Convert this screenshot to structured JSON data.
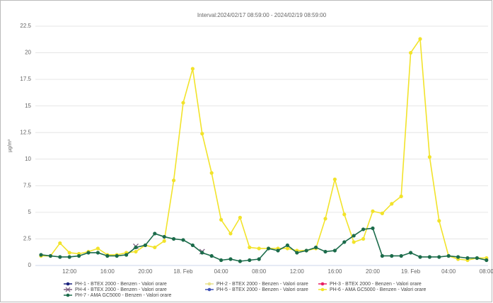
{
  "chart_data": {
    "type": "line",
    "title": "Interval:2024/02/17 08:59:00 - 2024/02/19 08:59:00",
    "y_label": "µg/m³",
    "categories": [
      null,
      null,
      null,
      "12:00",
      null,
      null,
      null,
      "16:00",
      null,
      null,
      null,
      "20:00",
      null,
      null,
      null,
      "18. Feb",
      null,
      null,
      null,
      "04:00",
      null,
      null,
      null,
      "08:00",
      null,
      null,
      null,
      "12:00",
      null,
      null,
      null,
      "16:00",
      null,
      null,
      null,
      "20:00",
      null,
      null,
      null,
      "19. Feb",
      null,
      null,
      null,
      "04:00",
      null,
      null,
      null,
      "08:00"
    ],
    "ylim": [
      0,
      22.5
    ],
    "yticks": [
      0,
      2.5,
      5,
      7.5,
      10,
      12.5,
      15,
      17.5,
      20,
      22.5
    ],
    "grid": true,
    "series": [
      {
        "name": "PH-1 - BTEX 2000 - Benzen - Valori orare",
        "color": "#1a237e",
        "marker": "circle",
        "values": [
          null,
          null,
          null,
          null,
          null,
          null,
          null,
          null,
          null,
          null,
          null,
          null,
          null,
          null,
          null,
          null,
          null,
          null,
          null,
          null,
          null,
          null,
          null,
          null,
          null,
          null,
          null,
          null,
          null,
          null,
          null,
          null,
          null,
          null,
          null,
          null,
          null,
          null,
          null,
          null,
          null,
          null,
          null,
          null,
          null,
          null,
          null,
          null
        ]
      },
      {
        "name": "PH-2 - BTEX 2000 - Benzen - Valori orare",
        "color": "#e8e08a",
        "marker": "circle",
        "values": [
          null,
          null,
          null,
          null,
          null,
          null,
          null,
          null,
          null,
          null,
          null,
          null,
          null,
          null,
          null,
          null,
          null,
          null,
          null,
          null,
          null,
          null,
          null,
          null,
          null,
          null,
          null,
          null,
          null,
          null,
          null,
          null,
          null,
          null,
          null,
          null,
          null,
          null,
          null,
          null,
          null,
          null,
          null,
          null,
          null,
          null,
          null,
          null
        ]
      },
      {
        "name": "PH-3 - BTEX 2000 - Benzen - Valori orare",
        "color": "#e91e63",
        "marker": "circle",
        "values": [
          null,
          null,
          null,
          null,
          null,
          null,
          null,
          null,
          null,
          null,
          null,
          null,
          null,
          null,
          null,
          null,
          null,
          null,
          null,
          null,
          null,
          null,
          null,
          null,
          null,
          null,
          null,
          null,
          null,
          null,
          null,
          null,
          null,
          null,
          null,
          null,
          null,
          null,
          null,
          null,
          null,
          null,
          null,
          null,
          null,
          null,
          null,
          null
        ]
      },
      {
        "name": "PH-4 - BTEX 2000 - Benzen - Valori orare",
        "color": "#7b5a7e",
        "marker": "cross",
        "values": [
          null,
          null,
          null,
          null,
          null,
          null,
          null,
          null,
          null,
          null,
          1.8,
          null,
          null,
          null,
          null,
          null,
          null,
          1.3,
          null,
          null,
          null,
          null,
          null,
          null,
          null,
          null,
          null,
          null,
          null,
          null,
          null,
          null,
          null,
          null,
          null,
          null,
          null,
          null,
          null,
          null,
          null,
          null,
          null,
          null,
          null,
          null,
          null,
          null
        ]
      },
      {
        "name": "PH-5 - BTEX 2000 - Benzen - Valori orare",
        "color": "#3f51b5",
        "marker": "circle",
        "values": [
          null,
          null,
          null,
          null,
          null,
          null,
          null,
          null,
          null,
          null,
          null,
          null,
          null,
          null,
          null,
          null,
          null,
          null,
          null,
          null,
          null,
          null,
          null,
          null,
          null,
          null,
          null,
          null,
          null,
          null,
          null,
          null,
          null,
          null,
          null,
          null,
          null,
          null,
          null,
          null,
          null,
          null,
          null,
          null,
          null,
          null,
          null,
          null
        ]
      },
      {
        "name": "PH-6 - AMA GC5000 - Benzen - Valori orare",
        "color": "#f2e32a",
        "marker": "circle",
        "values": [
          0.9,
          0.9,
          2.1,
          1.2,
          1.1,
          1.3,
          1.6,
          1.0,
          1.0,
          1.2,
          1.3,
          1.9,
          1.7,
          2.3,
          8.0,
          15.3,
          18.5,
          12.4,
          8.7,
          4.3,
          3.0,
          4.5,
          1.7,
          1.6,
          1.6,
          1.6,
          1.6,
          1.4,
          1.4,
          1.6,
          4.4,
          8.1,
          4.8,
          2.2,
          2.5,
          5.1,
          4.9,
          5.8,
          6.5,
          20.0,
          21.3,
          10.2,
          4.2,
          0.9,
          0.6,
          0.5,
          0.7,
          0.7
        ]
      },
      {
        "name": "PH-7 - AMA GC5000 - Benzen - Valori orare",
        "color": "#1b6b4a",
        "marker": "circle",
        "values": [
          1.0,
          0.9,
          0.8,
          0.8,
          0.9,
          1.2,
          1.2,
          0.9,
          0.9,
          1.0,
          1.7,
          1.9,
          3.0,
          2.7,
          2.5,
          2.4,
          1.9,
          1.2,
          0.9,
          0.5,
          0.6,
          0.4,
          0.5,
          0.6,
          1.6,
          1.4,
          1.9,
          1.2,
          1.4,
          1.7,
          1.3,
          1.4,
          2.2,
          2.8,
          3.4,
          3.5,
          0.9,
          0.9,
          0.9,
          1.2,
          0.8,
          0.8,
          0.8,
          0.9,
          0.8,
          0.7,
          0.7,
          0.5
        ]
      }
    ]
  }
}
